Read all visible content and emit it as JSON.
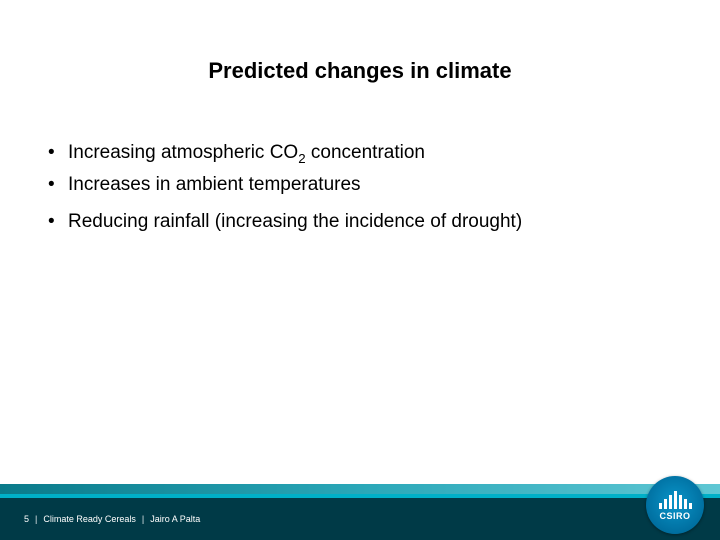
{
  "slide": {
    "title": "Predicted changes in climate",
    "title_fontsize": 22,
    "title_color": "#000000",
    "bullets": [
      {
        "text_html": "Increasing atmospheric CO<sub>2</sub> concentration",
        "gap_before": false
      },
      {
        "text_html": "Increases in ambient temperatures",
        "gap_before": false
      },
      {
        "text_html": "Reducing rainfall (increasing the incidence of drought)",
        "gap_before": true
      }
    ],
    "bullet_fontsize": 19,
    "bullet_color": "#000000",
    "background_color": "#ffffff"
  },
  "footer": {
    "page_number": "5",
    "project": "Climate Ready Cereals",
    "author": "Jairo A Palta",
    "separator": "|",
    "fontsize": 9,
    "text_color": "#ffffff",
    "bar_dark_color": "#003a47",
    "bar_teal_thin_color": "#00b0c8",
    "bar_teal_gradient_from": "#0a7a8a",
    "bar_teal_gradient_mid": "#2aa7b8",
    "bar_teal_gradient_to": "#5fc7d4"
  },
  "logo": {
    "label": "CSIRO",
    "fontsize": 9,
    "bg_from": "#0a95c9",
    "bg_to": "#005a85",
    "bar_color": "#ffffff"
  }
}
